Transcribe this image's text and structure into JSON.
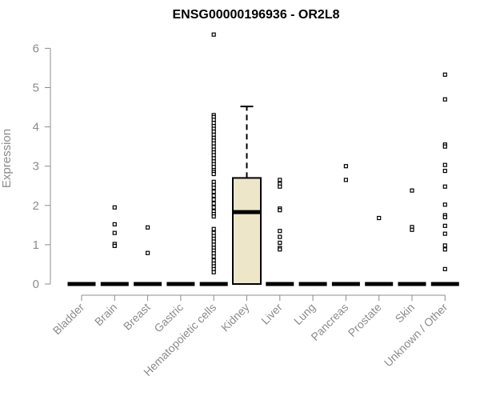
{
  "chart_data": {
    "type": "box",
    "title": "ENSG00000196936 - OR2L8",
    "xlabel": "",
    "ylabel": "Expression",
    "ylim": [
      0,
      6.5
    ],
    "yticks": [
      0,
      1,
      2,
      3,
      4,
      5,
      6
    ],
    "grid": false,
    "box_fill": "#ede6c9",
    "categories": [
      "Bladder",
      "Brain",
      "Breast",
      "Gastric",
      "Hematopoietic cells",
      "Kidney",
      "Liver",
      "Lung",
      "Pancreas",
      "Prostate",
      "Skin",
      "Unknown / Other"
    ],
    "boxes": [
      {
        "category": "Bladder",
        "q1": 0,
        "median": 0,
        "q3": 0,
        "whisker_low": 0,
        "whisker_high": 0,
        "outliers": []
      },
      {
        "category": "Brain",
        "q1": 0,
        "median": 0,
        "q3": 0,
        "whisker_low": 0,
        "whisker_high": 0,
        "outliers": [
          1.95,
          1.52,
          1.3,
          1.02,
          0.97
        ]
      },
      {
        "category": "Breast",
        "q1": 0,
        "median": 0,
        "q3": 0,
        "whisker_low": 0,
        "whisker_high": 0,
        "outliers": [
          1.44,
          0.79
        ]
      },
      {
        "category": "Gastric",
        "q1": 0,
        "median": 0,
        "q3": 0,
        "whisker_low": 0,
        "whisker_high": 0,
        "outliers": []
      },
      {
        "category": "Hematopoietic cells",
        "q1": 0,
        "median": 0,
        "q3": 0,
        "whisker_low": 0,
        "whisker_high": 0,
        "outliers": [
          6.35,
          4.3,
          4.25,
          4.18,
          4.1,
          4.02,
          3.95,
          3.88,
          3.8,
          3.72,
          3.65,
          3.58,
          3.5,
          3.42,
          3.35,
          3.28,
          3.2,
          3.12,
          3.05,
          2.98,
          2.9,
          2.85,
          2.8,
          2.6,
          2.52,
          2.45,
          2.35,
          2.25,
          2.15,
          2.05,
          1.95,
          1.85,
          1.78,
          1.72,
          1.4,
          1.3,
          1.22,
          1.15,
          1.08,
          1.0,
          0.92,
          0.85,
          0.78,
          0.7,
          0.6,
          0.52,
          0.45,
          0.38,
          0.3
        ]
      },
      {
        "category": "Kidney",
        "q1": 0,
        "median": 1.83,
        "q3": 2.7,
        "whisker_low": 0,
        "whisker_high": 4.52,
        "outliers": []
      },
      {
        "category": "Liver",
        "q1": 0,
        "median": 0,
        "q3": 0,
        "whisker_low": 0,
        "whisker_high": 0,
        "outliers": [
          2.65,
          2.55,
          2.48,
          1.92,
          1.88,
          1.35,
          1.2,
          1.05,
          0.92,
          0.88
        ]
      },
      {
        "category": "Lung",
        "q1": 0,
        "median": 0,
        "q3": 0,
        "whisker_low": 0,
        "whisker_high": 0,
        "outliers": []
      },
      {
        "category": "Pancreas",
        "q1": 0,
        "median": 0,
        "q3": 0,
        "whisker_low": 0,
        "whisker_high": 0,
        "outliers": [
          3.0,
          2.65
        ]
      },
      {
        "category": "Prostate",
        "q1": 0,
        "median": 0,
        "q3": 0,
        "whisker_low": 0,
        "whisker_high": 0,
        "outliers": [
          1.68
        ]
      },
      {
        "category": "Skin",
        "q1": 0,
        "median": 0,
        "q3": 0,
        "whisker_low": 0,
        "whisker_high": 0,
        "outliers": [
          2.38,
          1.45,
          1.38
        ]
      },
      {
        "category": "Unknown / Other",
        "q1": 0,
        "median": 0,
        "q3": 0,
        "whisker_low": 0,
        "whisker_high": 0,
        "outliers": [
          5.33,
          4.7,
          3.55,
          3.5,
          3.03,
          2.88,
          2.48,
          2.02,
          1.75,
          1.7,
          1.48,
          1.28,
          0.98,
          0.88,
          0.38
        ]
      }
    ]
  }
}
